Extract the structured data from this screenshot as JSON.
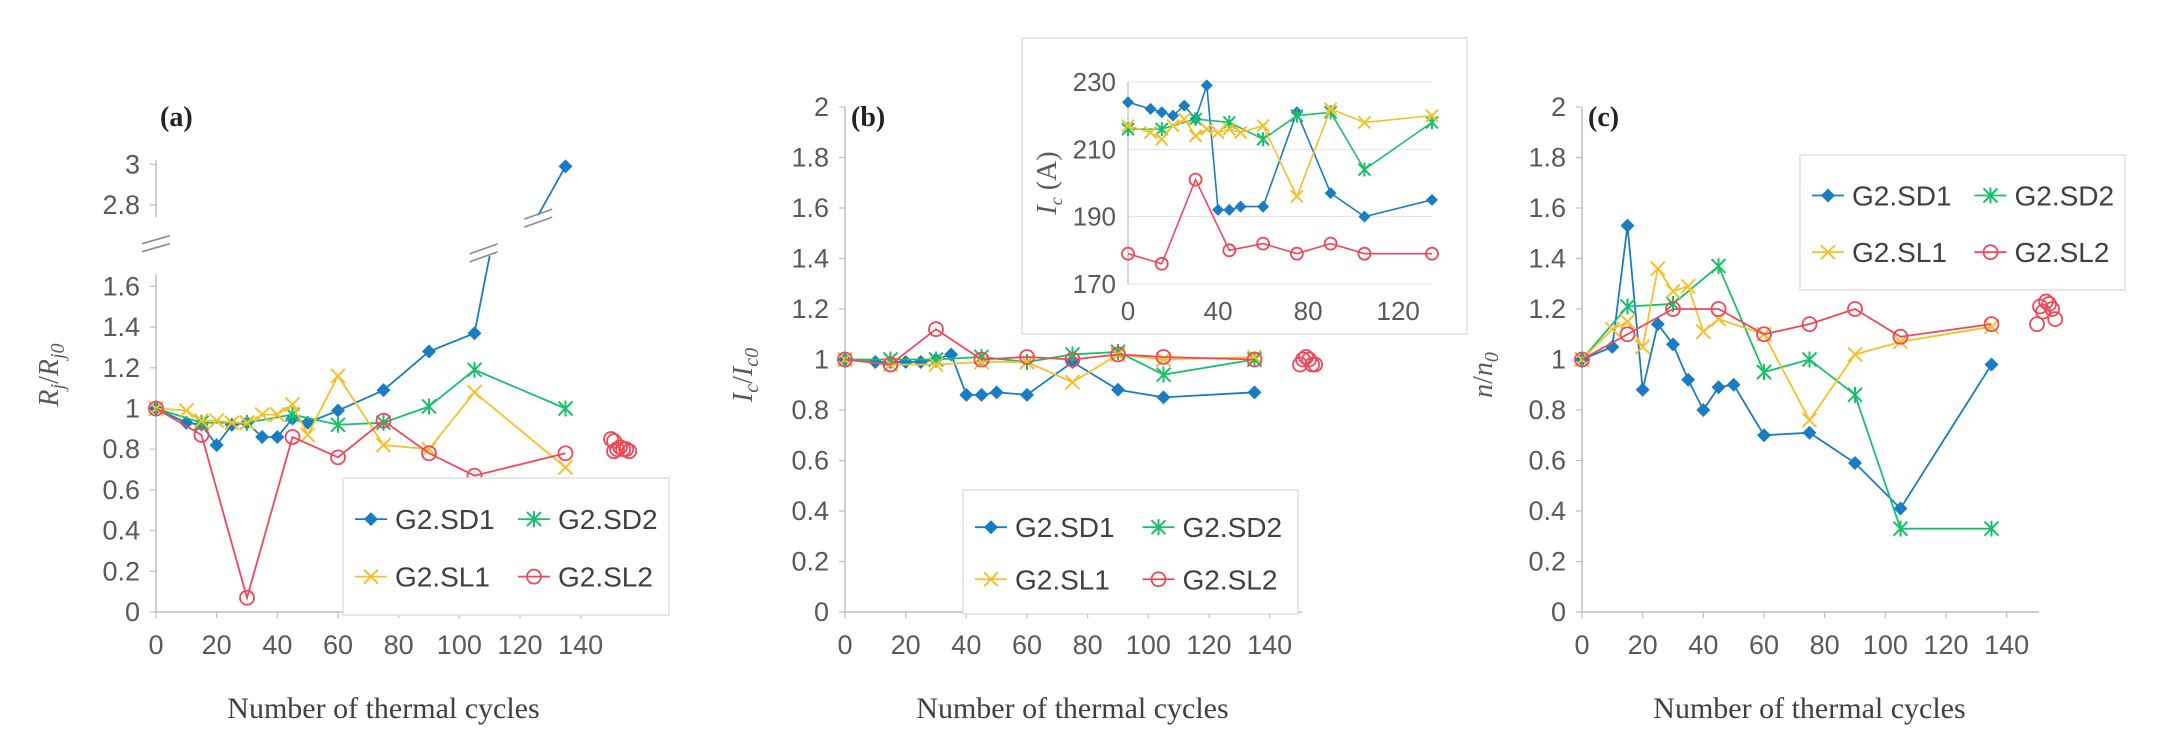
{
  "colors": {
    "SD1": "#1a7dc4",
    "SD2": "#18c06a",
    "SL1": "#f5c02c",
    "SL2": "#f0485a",
    "axis": "#bfbfbf",
    "text": "#595959"
  },
  "chart_data": [
    {
      "type": "line",
      "panel_label": "(a)",
      "xlabel": "Number of thermal cycles",
      "ylabel": "R_j / R_j0",
      "xlim": [
        0,
        150
      ],
      "xticks": [
        0,
        20,
        40,
        60,
        80,
        100,
        120,
        140
      ],
      "yticks_lower": [
        0,
        0.2,
        0.4,
        0.6,
        0.8,
        1,
        1.2,
        1.4,
        1.6
      ],
      "yticks_upper": [
        2.8,
        3
      ],
      "axis_break": "y between 1.6 and 2.8",
      "grid": false,
      "legend_position": "bottom-right",
      "series": [
        {
          "name": "G2.SD1",
          "color": "SD1",
          "marker": "diamond",
          "x": [
            0,
            10,
            15,
            20,
            25,
            30,
            35,
            40,
            45,
            50,
            60,
            75,
            90,
            105,
            110,
            135
          ],
          "y": [
            1.0,
            0.93,
            0.92,
            0.82,
            0.92,
            0.93,
            0.86,
            0.86,
            0.95,
            0.93,
            0.99,
            1.09,
            1.28,
            1.37,
            1.75,
            2.99
          ]
        },
        {
          "name": "G2.SD2",
          "color": "SD2",
          "marker": "asterisk",
          "x": [
            0,
            15,
            30,
            45,
            60,
            75,
            90,
            105,
            135
          ],
          "y": [
            1.0,
            0.93,
            0.93,
            0.97,
            0.92,
            0.93,
            1.01,
            1.19,
            1.0
          ]
        },
        {
          "name": "G2.SL1",
          "color": "SL1",
          "marker": "x",
          "x": [
            0,
            10,
            15,
            20,
            25,
            30,
            35,
            40,
            45,
            50,
            60,
            75,
            90,
            105,
            135
          ],
          "y": [
            1.0,
            0.99,
            0.94,
            0.94,
            0.93,
            0.93,
            0.97,
            0.97,
            1.02,
            0.87,
            1.16,
            0.82,
            0.8,
            1.08,
            0.71
          ]
        },
        {
          "name": "G2.SL2",
          "color": "SL2",
          "marker": "circle",
          "x": [
            0,
            15,
            30,
            45,
            60,
            75,
            90,
            105,
            135
          ],
          "y": [
            1.0,
            0.87,
            0.07,
            0.86,
            0.76,
            0.94,
            0.78,
            0.67,
            0.78
          ],
          "extra_points": {
            "x": [
              150,
              151,
              152,
              153,
              154,
              155,
              156,
              151,
              152
            ],
            "y": [
              0.85,
              0.79,
              0.8,
              0.81,
              0.8,
              0.8,
              0.79,
              0.84,
              0.62
            ]
          }
        }
      ]
    },
    {
      "type": "line",
      "panel_label": "(b)",
      "xlabel": "Number of thermal cycles",
      "ylabel": "I_c / I_c0",
      "xlim": [
        0,
        150
      ],
      "ylim": [
        0,
        2
      ],
      "xticks": [
        0,
        20,
        40,
        60,
        80,
        100,
        120,
        140
      ],
      "yticks": [
        0,
        0.2,
        0.4,
        0.6,
        0.8,
        1,
        1.2,
        1.4,
        1.6,
        1.8,
        2
      ],
      "grid": false,
      "legend_position": "bottom-center",
      "series": [
        {
          "name": "G2.SD1",
          "color": "SD1",
          "marker": "diamond",
          "x": [
            0,
            10,
            15,
            20,
            25,
            30,
            35,
            40,
            45,
            50,
            60,
            75,
            90,
            105,
            135
          ],
          "y": [
            1.0,
            0.99,
            0.99,
            0.99,
            0.99,
            1.0,
            1.02,
            0.86,
            0.86,
            0.87,
            0.86,
            0.99,
            0.88,
            0.85,
            0.87
          ]
        },
        {
          "name": "G2.SD2",
          "color": "SD2",
          "marker": "asterisk",
          "x": [
            0,
            15,
            30,
            45,
            60,
            75,
            90,
            105,
            135
          ],
          "y": [
            1.0,
            1.0,
            1.0,
            1.01,
            0.99,
            1.02,
            1.03,
            0.94,
            1.0
          ]
        },
        {
          "name": "G2.SL1",
          "color": "SL1",
          "marker": "x",
          "x": [
            0,
            15,
            30,
            45,
            60,
            75,
            90,
            105,
            135
          ],
          "y": [
            1.0,
            0.98,
            0.98,
            0.99,
            0.99,
            0.91,
            1.02,
            1.0,
            1.01
          ]
        },
        {
          "name": "G2.SL2",
          "color": "SL2",
          "marker": "circle",
          "x": [
            0,
            15,
            30,
            45,
            60,
            75,
            90,
            105,
            135
          ],
          "y": [
            1.0,
            0.98,
            1.12,
            1.0,
            1.01,
            1.0,
            1.02,
            1.01,
            1.0
          ],
          "extra_points": {
            "x": [
              150,
              151,
              152,
              153,
              154,
              155
            ],
            "y": [
              0.98,
              1.0,
              1.01,
              1.0,
              0.98,
              0.98
            ]
          }
        }
      ],
      "inset": {
        "ylabel": "I_c (A)",
        "xlim": [
          0,
          135
        ],
        "ylim": [
          170,
          230
        ],
        "xticks": [
          0,
          40,
          80,
          120
        ],
        "yticks": [
          170,
          190,
          210,
          230
        ],
        "series": [
          {
            "name": "G2.SD1",
            "color": "SD1",
            "marker": "diamond",
            "x": [
              0,
              10,
              15,
              20,
              25,
              30,
              35,
              40,
              45,
              50,
              60,
              75,
              90,
              105,
              135
            ],
            "y": [
              224,
              222,
              221,
              220,
              223,
              219,
              229,
              192,
              192,
              193,
              193,
              221,
              197,
              190,
              195
            ]
          },
          {
            "name": "G2.SD2",
            "color": "SD2",
            "marker": "asterisk",
            "x": [
              0,
              15,
              30,
              45,
              60,
              75,
              90,
              105,
              135
            ],
            "y": [
              216,
              216,
              219,
              218,
              213,
              220,
              221,
              204,
              218
            ]
          },
          {
            "name": "G2.SL1",
            "color": "SL1",
            "marker": "x",
            "x": [
              0,
              10,
              15,
              20,
              25,
              30,
              35,
              40,
              45,
              50,
              60,
              75,
              90,
              105,
              135
            ],
            "y": [
              217,
              215,
              213,
              217,
              219,
              214,
              216,
              215,
              216,
              215,
              217,
              196,
              222,
              218,
              220
            ]
          },
          {
            "name": "G2.SL2",
            "color": "SL2",
            "marker": "circle",
            "x": [
              0,
              15,
              30,
              45,
              60,
              75,
              90,
              105,
              135
            ],
            "y": [
              179,
              176,
              201,
              180,
              182,
              179,
              182,
              179,
              179
            ]
          }
        ]
      }
    },
    {
      "type": "line",
      "panel_label": "(c)",
      "xlabel": "Number of thermal cycles",
      "ylabel": "n / n_0",
      "xlim": [
        0,
        150
      ],
      "ylim": [
        0,
        2
      ],
      "xticks": [
        0,
        20,
        40,
        60,
        80,
        100,
        120,
        140
      ],
      "yticks": [
        0,
        0.2,
        0.4,
        0.6,
        0.8,
        1,
        1.2,
        1.4,
        1.6,
        1.8,
        2
      ],
      "grid": false,
      "legend_position": "top-right",
      "series": [
        {
          "name": "G2.SD1",
          "color": "SD1",
          "marker": "diamond",
          "x": [
            0,
            10,
            15,
            20,
            25,
            30,
            35,
            40,
            45,
            50,
            60,
            75,
            90,
            105,
            135
          ],
          "y": [
            1.0,
            1.05,
            1.53,
            0.88,
            1.14,
            1.06,
            0.92,
            0.8,
            0.89,
            0.9,
            0.7,
            0.71,
            0.59,
            0.41,
            0.98
          ]
        },
        {
          "name": "G2.SD2",
          "color": "SD2",
          "marker": "asterisk",
          "x": [
            0,
            15,
            30,
            45,
            60,
            75,
            90,
            105,
            135
          ],
          "y": [
            1.0,
            1.21,
            1.22,
            1.37,
            0.95,
            1.0,
            0.86,
            0.33,
            0.33
          ]
        },
        {
          "name": "G2.SL1",
          "color": "SL1",
          "marker": "x",
          "x": [
            0,
            10,
            15,
            20,
            25,
            30,
            35,
            40,
            45,
            60,
            75,
            90,
            105,
            135
          ],
          "y": [
            1.0,
            1.12,
            1.15,
            1.05,
            1.36,
            1.27,
            1.29,
            1.11,
            1.16,
            1.1,
            0.76,
            1.02,
            1.07,
            1.13
          ]
        },
        {
          "name": "G2.SL2",
          "color": "SL2",
          "marker": "circle",
          "x": [
            0,
            15,
            30,
            45,
            60,
            75,
            90,
            105,
            135
          ],
          "y": [
            1.0,
            1.1,
            1.2,
            1.2,
            1.1,
            1.14,
            1.2,
            1.09,
            1.14
          ],
          "extra_points": {
            "x": [
              150,
              151,
              152,
              153,
              154,
              155,
              156
            ],
            "y": [
              1.14,
              1.21,
              1.19,
              1.23,
              1.22,
              1.2,
              1.16
            ]
          }
        }
      ]
    }
  ]
}
